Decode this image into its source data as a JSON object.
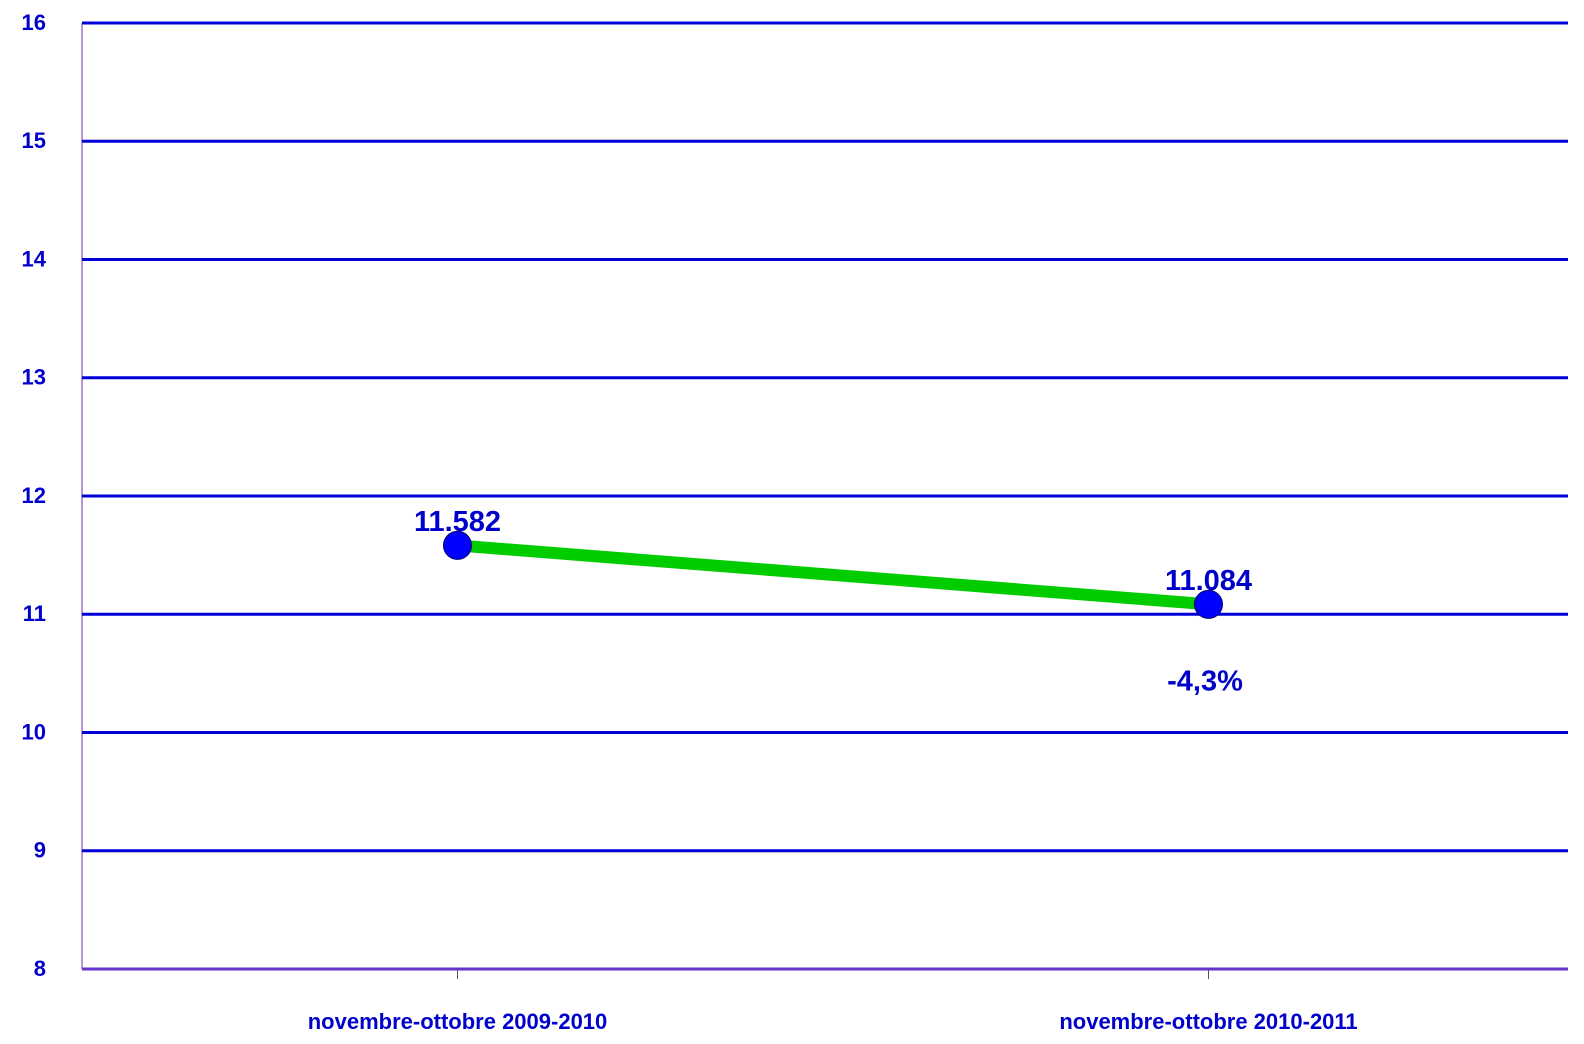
{
  "chart_data": {
    "type": "line",
    "categories": [
      "novembre-ottobre 2009-2010",
      "novembre-ottobre 2010-2011"
    ],
    "values": [
      11.582,
      11.084
    ],
    "color": "#00cc00",
    "marker_color": "#0000ff",
    "grid_color": "#0000dd",
    "ylim": [
      8,
      16
    ],
    "yticks": [
      8,
      9,
      10,
      11,
      12,
      13,
      14,
      15,
      16
    ],
    "grid": true,
    "annotation": "-4,3%"
  }
}
